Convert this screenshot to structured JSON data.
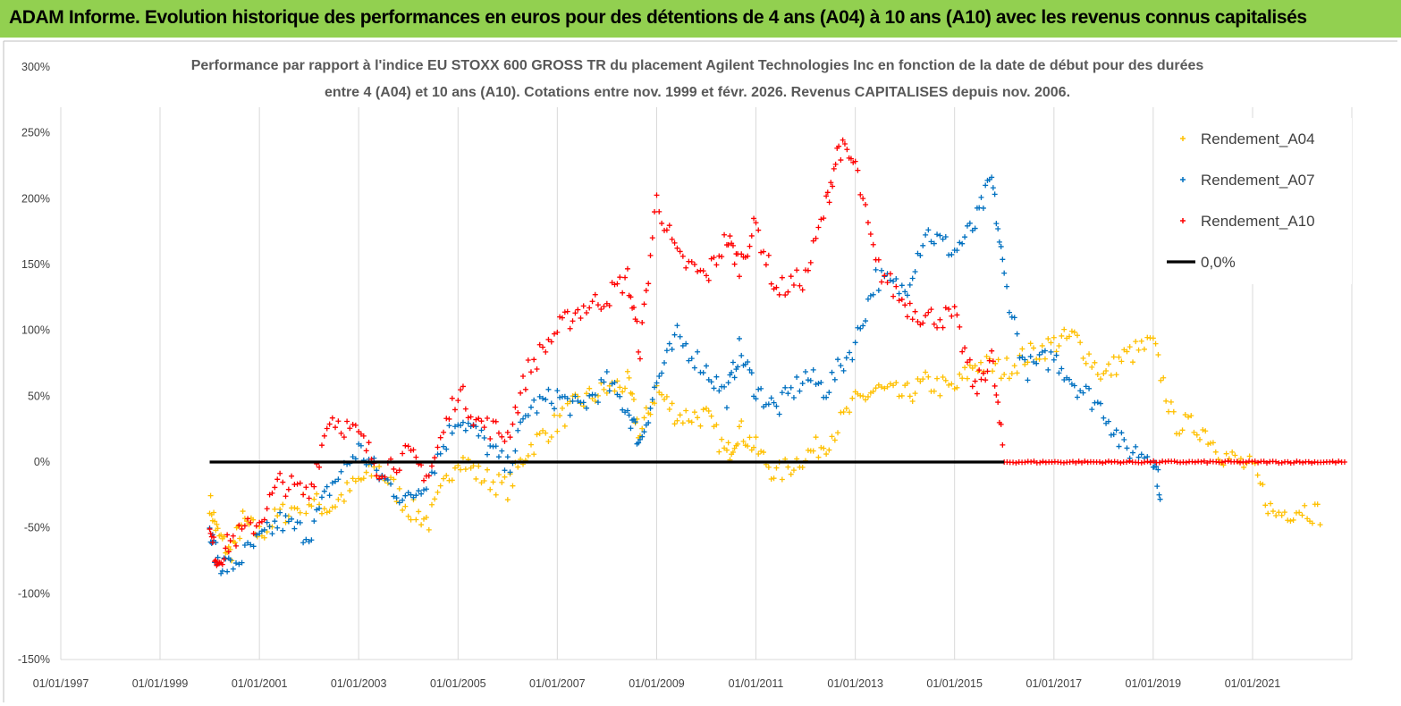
{
  "banner": {
    "title": "ADAM Informe. Evolution historique des performances en euros pour des détentions de 4 ans (A04) à 10 ans (A10) avec les revenus connus capitalisés"
  },
  "chart_data": {
    "type": "scatter",
    "title_line1": "Performance par rapport à l'indice EU STOXX 600 GROSS TR  du placement Agilent Technologies Inc en fonction de la date de début pour des durées",
    "title_line2": "entre 4 (A04) et 10 ans (A10). Cotations entre nov. 1999 et févr. 2026. Revenus CAPITALISES depuis nov. 2006.",
    "xlabel": "",
    "ylabel": "",
    "x_tick_labels": [
      "01/01/1997",
      "01/01/1999",
      "01/01/2001",
      "01/01/2003",
      "01/01/2005",
      "01/01/2007",
      "01/01/2009",
      "01/01/2011",
      "01/01/2013",
      "01/01/2015",
      "01/01/2017",
      "01/01/2019",
      "01/01/2021"
    ],
    "y_tick_labels": [
      "300%",
      "250%",
      "200%",
      "150%",
      "100%",
      "50%",
      "0%",
      "-50%",
      "-100%",
      "-150%"
    ],
    "ylim": [
      -150,
      300
    ],
    "xlim": [
      "1997-01-01",
      "2023-01-01"
    ],
    "grid": "vertical",
    "legend_position": "top-right",
    "series": [
      {
        "name": "Rendement_A04",
        "color": "#ffc000",
        "marker": "+",
        "points": [
          [
            "2000-01-01",
            -30
          ],
          [
            "2000-03-01",
            -55
          ],
          [
            "2000-06-01",
            -70
          ],
          [
            "2000-09-01",
            -45
          ],
          [
            "2001-01-01",
            -55
          ],
          [
            "2001-06-01",
            -40
          ],
          [
            "2002-01-01",
            -30
          ],
          [
            "2002-06-01",
            -35
          ],
          [
            "2003-01-01",
            -15
          ],
          [
            "2003-06-01",
            -5
          ],
          [
            "2004-01-01",
            -35
          ],
          [
            "2004-06-01",
            -45
          ],
          [
            "2005-01-01",
            5
          ],
          [
            "2005-06-01",
            -10
          ],
          [
            "2006-01-01",
            -20
          ],
          [
            "2006-06-01",
            10
          ],
          [
            "2007-01-01",
            30
          ],
          [
            "2007-06-01",
            45
          ],
          [
            "2008-01-01",
            55
          ],
          [
            "2008-06-01",
            60
          ],
          [
            "2008-09-01",
            20
          ],
          [
            "2009-01-01",
            55
          ],
          [
            "2009-06-01",
            35
          ],
          [
            "2010-01-01",
            35
          ],
          [
            "2010-06-01",
            5
          ],
          [
            "2010-09-01",
            25
          ],
          [
            "2011-01-01",
            10
          ],
          [
            "2011-06-01",
            -10
          ],
          [
            "2012-01-01",
            5
          ],
          [
            "2012-06-01",
            15
          ],
          [
            "2013-01-01",
            45
          ],
          [
            "2013-06-01",
            55
          ],
          [
            "2014-01-01",
            50
          ],
          [
            "2014-06-01",
            60
          ],
          [
            "2015-01-01",
            55
          ],
          [
            "2015-06-01",
            75
          ],
          [
            "2016-01-01",
            70
          ],
          [
            "2016-06-01",
            80
          ],
          [
            "2017-01-01",
            90
          ],
          [
            "2017-06-01",
            95
          ],
          [
            "2018-01-01",
            65
          ],
          [
            "2018-06-01",
            80
          ],
          [
            "2019-01-01",
            90
          ],
          [
            "2019-06-01",
            30
          ],
          [
            "2020-01-01",
            25
          ],
          [
            "2020-06-01",
            5
          ],
          [
            "2021-01-01",
            -5
          ],
          [
            "2021-06-01",
            -40
          ],
          [
            "2022-01-01",
            -35
          ],
          [
            "2022-06-01",
            -40
          ]
        ]
      },
      {
        "name": "Rendement_A07",
        "color": "#0070c0",
        "marker": "+",
        "points": [
          [
            "2000-01-01",
            -55
          ],
          [
            "2000-03-01",
            -75
          ],
          [
            "2000-06-01",
            -80
          ],
          [
            "2001-01-01",
            -60
          ],
          [
            "2001-06-01",
            -45
          ],
          [
            "2002-01-01",
            -55
          ],
          [
            "2002-06-01",
            -20
          ],
          [
            "2003-01-01",
            10
          ],
          [
            "2003-06-01",
            -10
          ],
          [
            "2004-01-01",
            -30
          ],
          [
            "2004-06-01",
            -10
          ],
          [
            "2005-01-01",
            35
          ],
          [
            "2005-06-01",
            20
          ],
          [
            "2006-01-01",
            -5
          ],
          [
            "2006-06-01",
            40
          ],
          [
            "2007-01-01",
            50
          ],
          [
            "2007-06-01",
            40
          ],
          [
            "2008-01-01",
            60
          ],
          [
            "2008-06-01",
            40
          ],
          [
            "2008-09-01",
            15
          ],
          [
            "2009-01-01",
            60
          ],
          [
            "2009-06-01",
            95
          ],
          [
            "2010-01-01",
            70
          ],
          [
            "2010-06-01",
            50
          ],
          [
            "2010-09-01",
            85
          ],
          [
            "2011-01-01",
            55
          ],
          [
            "2011-06-01",
            40
          ],
          [
            "2012-01-01",
            65
          ],
          [
            "2012-06-01",
            55
          ],
          [
            "2013-01-01",
            90
          ],
          [
            "2013-06-01",
            140
          ],
          [
            "2014-01-01",
            130
          ],
          [
            "2014-06-01",
            175
          ],
          [
            "2015-01-01",
            160
          ],
          [
            "2015-06-01",
            180
          ],
          [
            "2015-10-01",
            215
          ],
          [
            "2016-01-01",
            140
          ],
          [
            "2016-06-01",
            70
          ],
          [
            "2017-01-01",
            80
          ],
          [
            "2017-06-01",
            60
          ],
          [
            "2018-01-01",
            40
          ],
          [
            "2018-06-01",
            10
          ],
          [
            "2019-01-01",
            5
          ],
          [
            "2019-03-01",
            -25
          ]
        ]
      },
      {
        "name": "Rendement_A10",
        "color": "#ff0000",
        "marker": "+",
        "points": [
          [
            "2000-01-01",
            -55
          ],
          [
            "2000-03-01",
            -75
          ],
          [
            "2000-06-01",
            -60
          ],
          [
            "2001-01-01",
            -45
          ],
          [
            "2001-06-01",
            -15
          ],
          [
            "2002-01-01",
            -25
          ],
          [
            "2002-06-01",
            35
          ],
          [
            "2003-01-01",
            20
          ],
          [
            "2003-06-01",
            -5
          ],
          [
            "2004-01-01",
            5
          ],
          [
            "2004-06-01",
            -10
          ],
          [
            "2005-01-01",
            55
          ],
          [
            "2005-06-01",
            30
          ],
          [
            "2006-01-01",
            20
          ],
          [
            "2006-06-01",
            70
          ],
          [
            "2007-01-01",
            100
          ],
          [
            "2007-06-01",
            115
          ],
          [
            "2008-01-01",
            125
          ],
          [
            "2008-06-01",
            140
          ],
          [
            "2008-09-01",
            85
          ],
          [
            "2009-01-01",
            200
          ],
          [
            "2009-06-01",
            155
          ],
          [
            "2010-01-01",
            140
          ],
          [
            "2010-06-01",
            170
          ],
          [
            "2010-09-01",
            150
          ],
          [
            "2011-01-01",
            180
          ],
          [
            "2011-06-01",
            130
          ],
          [
            "2012-01-01",
            140
          ],
          [
            "2012-06-01",
            195
          ],
          [
            "2012-09-01",
            240
          ],
          [
            "2013-01-01",
            225
          ],
          [
            "2013-06-01",
            150
          ],
          [
            "2014-01-01",
            120
          ],
          [
            "2014-06-01",
            110
          ],
          [
            "2015-01-01",
            110
          ],
          [
            "2015-06-01",
            55
          ],
          [
            "2015-10-01",
            80
          ],
          [
            "2016-01-01",
            0
          ],
          [
            "2022-12-01",
            0
          ]
        ]
      },
      {
        "name": "0,0%",
        "color": "#000000",
        "marker": "line",
        "points": [
          [
            "2000-01-01",
            0
          ],
          [
            "2016-01-01",
            0
          ]
        ]
      }
    ]
  }
}
